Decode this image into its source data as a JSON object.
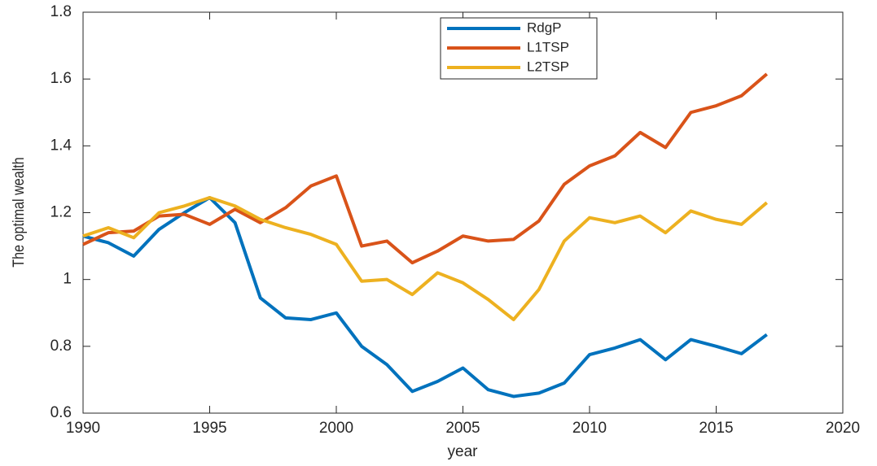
{
  "chart_data": {
    "type": "line",
    "xlabel": "year",
    "ylabel": "The optimal wealth",
    "x": [
      1990,
      1991,
      1992,
      1993,
      1994,
      1995,
      1996,
      1997,
      1998,
      1999,
      2000,
      2001,
      2002,
      2003,
      2004,
      2005,
      2006,
      2007,
      2008,
      2009,
      2010,
      2011,
      2012,
      2013,
      2014,
      2015,
      2016,
      2017
    ],
    "series": [
      {
        "name": "RdgP",
        "color": "#0072BD",
        "values": [
          1.13,
          1.11,
          1.07,
          1.15,
          1.2,
          1.245,
          1.17,
          0.945,
          0.885,
          0.88,
          0.9,
          0.8,
          0.745,
          0.665,
          0.695,
          0.735,
          0.67,
          0.65,
          0.66,
          0.69,
          0.775,
          0.795,
          0.82,
          0.76,
          0.82,
          0.8,
          0.778,
          0.835
        ]
      },
      {
        "name": "L1TSP",
        "color": "#D95319",
        "values": [
          1.105,
          1.14,
          1.145,
          1.19,
          1.195,
          1.165,
          1.21,
          1.17,
          1.215,
          1.28,
          1.31,
          1.1,
          1.115,
          1.05,
          1.085,
          1.13,
          1.115,
          1.12,
          1.175,
          1.285,
          1.34,
          1.37,
          1.44,
          1.395,
          1.5,
          1.52,
          1.55,
          1.615
        ]
      },
      {
        "name": "L2TSP",
        "color": "#EDB120",
        "values": [
          1.13,
          1.155,
          1.125,
          1.2,
          1.22,
          1.245,
          1.22,
          1.18,
          1.155,
          1.135,
          1.105,
          0.995,
          1.0,
          0.955,
          1.02,
          0.99,
          0.94,
          0.88,
          0.97,
          1.115,
          1.185,
          1.17,
          1.19,
          1.14,
          1.205,
          1.18,
          1.165,
          1.23
        ]
      }
    ],
    "xlim": [
      1990,
      2020
    ],
    "xticks": [
      1990,
      1995,
      2000,
      2005,
      2010,
      2015,
      2020
    ],
    "ylim": [
      0.6,
      1.8
    ],
    "yticks": [
      0.6,
      0.8,
      1,
      1.2,
      1.4,
      1.6,
      1.8
    ],
    "legend": "top"
  }
}
